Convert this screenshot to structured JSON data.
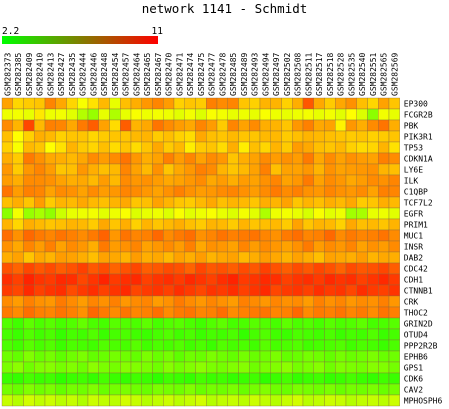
{
  "title": "network 1141 - Schmidt",
  "chart_data": {
    "type": "heatmap",
    "title": "network 1141 - Schmidt",
    "color_scale": {
      "min": 2.2,
      "max": 11,
      "min_label": "2.2",
      "max_label": "11",
      "low_color": "#00ff00",
      "high_color": "#ff0000"
    },
    "columns": [
      "GSM282373",
      "GSM282385",
      "GSM282409",
      "GSM282410",
      "GSM282413",
      "GSM282427",
      "GSM282435",
      "GSM282444",
      "GSM282446",
      "GSM282448",
      "GSM282454",
      "GSM282457",
      "GSM282464",
      "GSM282465",
      "GSM282467",
      "GSM282470",
      "GSM282471",
      "GSM282474",
      "GSM282475",
      "GSM282477",
      "GSM282478",
      "GSM282485",
      "GSM282489",
      "GSM282493",
      "GSM282494",
      "GSM282497",
      "GSM282502",
      "GSM282508",
      "GSM282511",
      "GSM282517",
      "GSM282518",
      "GSM282528",
      "GSM282535",
      "GSM282540",
      "GSM282551",
      "GSM282565",
      "GSM282569"
    ],
    "rows": [
      "EP300",
      "FCGR2B",
      "PBK",
      "PIK3R1",
      "TP53",
      "CDKN1A",
      "LY6E",
      "ILK",
      "C1QBP",
      "TCF7L2",
      "EGFR",
      "PRIM1",
      "MUC1",
      "INSR",
      "DAB2",
      "CDC42",
      "CDH1",
      "CTNNB1",
      "CRK",
      "THOC2",
      "GRIN2D",
      "OTUD4",
      "PPP2R2B",
      "EPHB6",
      "GPS1",
      "CDK6",
      "CAV2",
      "MPHOSPH6"
    ],
    "row_values": [
      [
        8.2,
        7.3,
        7.5,
        7.6,
        8.7,
        8.1,
        7.3,
        6.5,
        7.1,
        7.8,
        6.2,
        7.7,
        8.0,
        8.4,
        8.7,
        8.3,
        7.4,
        7.6,
        7.5,
        8.8,
        8.6,
        8.7,
        7.6,
        7.4,
        7.9,
        7.9,
        7.4,
        8.0,
        9.5,
        8.1,
        7.5,
        8.1,
        8.5,
        7.7,
        7.3,
        8.2,
        7.6
      ],
      [
        6.3,
        6.4,
        6.2,
        7.0,
        6.3,
        6.4,
        6.1,
        5.3,
        4.8,
        6.2,
        5.2,
        6.2,
        6.5,
        6.3,
        6.4,
        6.3,
        6.1,
        6.4,
        6.0,
        6.5,
        6.4,
        6.2,
        6.3,
        6.2,
        6.5,
        6.3,
        6.2,
        6.3,
        6.4,
        6.2,
        6.4,
        6.1,
        6.6,
        6.0,
        4.6,
        6.4,
        6.2
      ],
      [
        8.6,
        7.9,
        9.8,
        7.8,
        8.8,
        8.7,
        8.1,
        8.9,
        9.4,
        8.2,
        7.2,
        9.4,
        7.9,
        8.1,
        9.0,
        8.6,
        8.3,
        8.1,
        8.7,
        8.3,
        7.5,
        8.7,
        8.2,
        8.6,
        8.0,
        7.9,
        7.6,
        8.4,
        8.8,
        8.1,
        8.2,
        6.8,
        8.4,
        8.0,
        8.6,
        9.0,
        8.0
      ],
      [
        7.7,
        6.6,
        7.4,
        8.0,
        7.8,
        7.4,
        7.6,
        7.6,
        7.3,
        7.5,
        7.6,
        7.6,
        7.8,
        7.9,
        7.5,
        7.7,
        7.4,
        7.2,
        8.1,
        7.7,
        7.6,
        7.8,
        7.6,
        7.6,
        7.8,
        7.8,
        7.5,
        7.7,
        7.9,
        7.8,
        7.7,
        7.6,
        7.5,
        7.6,
        7.4,
        7.5,
        7.6
      ],
      [
        7.4,
        6.5,
        7.8,
        7.6,
        6.6,
        7.1,
        7.9,
        7.5,
        7.3,
        7.7,
        7.2,
        7.6,
        7.2,
        7.6,
        8.1,
        7.5,
        7.8,
        6.9,
        7.5,
        7.6,
        7.2,
        8.0,
        6.9,
        7.7,
        7.3,
        7.9,
        7.5,
        8.3,
        8.1,
        7.7,
        7.6,
        7.8,
        7.4,
        7.2,
        7.3,
        7.9,
        7.1
      ],
      [
        8.0,
        7.5,
        8.9,
        8.5,
        8.1,
        8.0,
        7.8,
        8.1,
        8.6,
        8.3,
        8.6,
        9.0,
        8.4,
        8.0,
        8.2,
        8.8,
        8.3,
        8.7,
        8.2,
        8.6,
        8.4,
        7.6,
        8.0,
        8.2,
        8.6,
        8.3,
        8.5,
        8.3,
        8.9,
        8.1,
        8.6,
        8.2,
        8.5,
        8.3,
        8.2,
        8.8,
        8.6
      ],
      [
        8.4,
        7.5,
        8.4,
        8.7,
        8.3,
        7.6,
        7.7,
        8.4,
        8.0,
        7.7,
        7.8,
        8.7,
        8.2,
        7.8,
        8.5,
        7.6,
        8.1,
        8.4,
        8.8,
        8.6,
        7.9,
        7.6,
        7.8,
        8.2,
        8.8,
        7.7,
        8.2,
        8.2,
        8.4,
        7.9,
        8.5,
        8.2,
        8.3,
        8.4,
        8.5,
        7.9,
        7.7
      ],
      [
        8.3,
        8.0,
        8.6,
        8.6,
        8.5,
        8.2,
        8.0,
        8.1,
        7.8,
        8.3,
        7.8,
        8.6,
        8.4,
        8.5,
        8.3,
        8.1,
        8.2,
        8.4,
        8.6,
        8.1,
        8.3,
        8.0,
        8.3,
        8.2,
        8.5,
        8.7,
        8.2,
        8.4,
        8.9,
        8.2,
        8.6,
        8.4,
        8.1,
        8.3,
        8.6,
        8.5,
        8.7
      ],
      [
        9.0,
        8.3,
        8.8,
        8.7,
        8.2,
        8.6,
        8.5,
        8.2,
        8.6,
        8.3,
        8.4,
        8.7,
        8.6,
        8.4,
        8.2,
        8.5,
        8.8,
        8.5,
        8.3,
        8.4,
        8.6,
        8.7,
        8.5,
        8.3,
        8.6,
        8.9,
        8.6,
        8.8,
        8.5,
        8.4,
        8.7,
        8.5,
        8.4,
        8.6,
        8.2,
        8.8,
        8.7
      ],
      [
        7.7,
        8.0,
        7.6,
        8.3,
        7.5,
        7.9,
        7.8,
        8.1,
        7.8,
        7.7,
        7.9,
        8.1,
        7.6,
        7.7,
        8.2,
        7.9,
        7.6,
        7.5,
        7.8,
        8.1,
        7.7,
        7.9,
        7.8,
        7.6,
        8.0,
        7.9,
        8.2,
        7.6,
        7.9,
        7.7,
        8.0,
        7.8,
        8.1,
        7.5,
        7.6,
        8.0,
        7.8
      ],
      [
        4.6,
        6.4,
        4.8,
        5.1,
        4.7,
        5.7,
        6.2,
        6.3,
        6.4,
        6.1,
        6.3,
        6.5,
        6.0,
        6.2,
        6.3,
        6.0,
        6.5,
        6.1,
        6.3,
        6.5,
        6.2,
        6.0,
        6.4,
        6.1,
        5.2,
        6.3,
        6.4,
        6.2,
        5.9,
        6.5,
        6.1,
        6.3,
        5.0,
        5.1,
        6.2,
        6.3,
        6.1
      ],
      [
        7.9,
        7.3,
        8.0,
        7.8,
        7.6,
        7.7,
        7.9,
        7.8,
        7.5,
        8.1,
        7.6,
        8.0,
        7.4,
        7.9,
        7.6,
        7.8,
        8.0,
        7.7,
        7.5,
        7.9,
        7.8,
        7.5,
        7.9,
        7.6,
        7.7,
        7.8,
        7.5,
        8.2,
        7.6,
        7.9,
        7.8,
        7.4,
        8.1,
        7.7,
        7.8,
        7.6,
        7.9
      ],
      [
        9.1,
        8.5,
        9.2,
        8.9,
        8.7,
        9.0,
        8.8,
        8.6,
        8.9,
        9.3,
        8.4,
        9.0,
        8.7,
        8.8,
        9.2,
        8.6,
        8.9,
        9.1,
        8.5,
        8.7,
        9.0,
        8.8,
        8.9,
        9.0,
        8.7,
        8.5,
        8.9,
        9.1,
        8.7,
        8.8,
        9.2,
        8.6,
        8.9,
        8.7,
        8.8,
        9.0,
        8.6
      ],
      [
        8.5,
        8.1,
        8.7,
        8.3,
        8.8,
        8.2,
        8.6,
        8.4,
        8.0,
        8.9,
        8.3,
        8.5,
        8.7,
        8.2,
        8.4,
        8.6,
        8.3,
        8.8,
        8.1,
        8.5,
        8.4,
        8.2,
        8.7,
        8.3,
        8.6,
        8.4,
        8.2,
        8.5,
        8.9,
        8.3,
        8.6,
        8.4,
        8.7,
        8.2,
        8.5,
        8.3,
        8.6
      ],
      [
        8.0,
        8.2,
        7.6,
        8.1,
        7.9,
        8.3,
        8.2,
        8.0,
        7.7,
        8.2,
        8.1,
        7.9,
        8.3,
        8.0,
        8.1,
        7.8,
        8.2,
        8.0,
        8.3,
        7.9,
        8.1,
        8.2,
        7.8,
        8.0,
        8.3,
        8.1,
        7.9,
        8.2,
        8.0,
        7.7,
        8.2,
        8.1,
        8.0,
        8.3,
        7.9,
        8.1,
        8.0
      ],
      [
        9.6,
        9.3,
        9.8,
        9.5,
        9.7,
        9.4,
        9.6,
        9.9,
        9.5,
        9.7,
        9.3,
        9.6,
        9.8,
        9.4,
        9.5,
        9.7,
        9.6,
        9.3,
        9.8,
        9.5,
        9.6,
        9.4,
        9.7,
        9.5,
        9.9,
        9.6,
        9.4,
        9.7,
        9.5,
        9.8,
        9.6,
        9.3,
        9.7,
        9.5,
        9.6,
        9.8,
        9.4
      ],
      [
        10.2,
        9.9,
        10.4,
        10.1,
        10.0,
        10.3,
        10.2,
        9.8,
        10.1,
        10.4,
        10.0,
        10.2,
        10.3,
        9.9,
        10.1,
        10.2,
        10.0,
        10.3,
        10.1,
        9.9,
        10.2,
        10.4,
        10.0,
        10.1,
        10.3,
        10.2,
        9.9,
        10.1,
        10.2,
        10.0,
        10.3,
        10.1,
        10.2,
        9.9,
        10.1,
        10.3,
        10.0
      ],
      [
        10.0,
        9.8,
        10.3,
        9.9,
        10.1,
        10.2,
        9.7,
        10.0,
        10.2,
        9.9,
        10.1,
        10.3,
        9.8,
        10.0,
        10.1,
        9.9,
        10.2,
        10.0,
        9.8,
        10.1,
        10.0,
        10.2,
        9.9,
        10.1,
        10.3,
        9.8,
        10.0,
        10.1,
        9.9,
        10.2,
        10.0,
        10.1,
        9.8,
        10.2,
        10.0,
        9.9,
        10.1
      ],
      [
        8.6,
        8.3,
        8.8,
        8.5,
        8.4,
        8.9,
        8.6,
        8.3,
        8.7,
        8.5,
        8.8,
        8.4,
        8.6,
        8.7,
        8.3,
        8.5,
        8.9,
        8.6,
        8.4,
        8.7,
        8.5,
        8.3,
        8.8,
        8.6,
        8.4,
        8.7,
        8.5,
        8.6,
        8.3,
        8.8,
        8.5,
        8.7,
        8.4,
        8.6,
        8.5,
        8.8,
        8.4
      ],
      [
        8.9,
        8.6,
        9.1,
        8.8,
        8.7,
        9.0,
        8.8,
        8.5,
        9.2,
        8.9,
        8.6,
        9.0,
        8.7,
        8.8,
        9.1,
        8.6,
        8.9,
        9.0,
        8.7,
        8.8,
        9.1,
        8.6,
        8.8,
        8.9,
        9.0,
        8.7,
        8.8,
        9.2,
        8.6,
        8.9,
        8.8,
        9.0,
        8.7,
        8.9,
        8.6,
        9.0,
        8.8
      ],
      [
        3.6,
        3.3,
        3.8,
        3.5,
        3.7,
        3.4,
        3.6,
        3.9,
        3.5,
        3.4,
        3.7,
        3.6,
        3.5,
        3.8,
        3.4,
        3.6,
        3.7,
        3.5,
        3.3,
        3.6,
        3.8,
        3.4,
        3.5,
        3.7,
        3.6,
        3.4,
        3.8,
        3.5,
        3.6,
        3.4,
        3.7,
        3.5,
        3.6,
        3.8,
        3.4,
        3.5,
        3.7
      ],
      [
        3.4,
        3.2,
        3.6,
        3.3,
        3.5,
        3.1,
        3.4,
        3.3,
        3.6,
        3.2,
        3.4,
        3.5,
        3.3,
        3.2,
        3.4,
        3.6,
        3.3,
        3.5,
        3.2,
        3.4,
        3.3,
        3.5,
        3.1,
        3.4,
        3.6,
        3.3,
        3.2,
        3.5,
        3.4,
        3.3,
        3.5,
        3.2,
        3.4,
        3.3,
        3.6,
        3.2,
        3.4
      ],
      [
        3.5,
        3.3,
        3.7,
        3.4,
        3.6,
        3.2,
        3.5,
        3.4,
        3.3,
        3.6,
        3.5,
        3.4,
        3.7,
        3.3,
        3.5,
        3.4,
        3.6,
        3.3,
        3.5,
        3.2,
        3.6,
        3.4,
        3.5,
        3.3,
        3.7,
        3.4,
        3.5,
        3.6,
        3.3,
        3.4,
        3.5,
        3.6,
        3.3,
        3.5,
        3.4,
        3.2,
        3.5
      ],
      [
        4.1,
        3.9,
        4.4,
        4.0,
        4.2,
        3.8,
        4.1,
        4.3,
        3.9,
        4.0,
        4.2,
        4.1,
        3.9,
        4.3,
        4.0,
        4.2,
        3.8,
        4.1,
        4.0,
        4.3,
        4.1,
        3.9,
        4.2,
        4.0,
        4.1,
        4.3,
        3.9,
        4.0,
        4.2,
        4.1,
        3.9,
        4.2,
        4.0,
        4.1,
        4.3,
        4.0,
        4.1
      ],
      [
        4.3,
        4.6,
        4.1,
        4.4,
        4.5,
        4.2,
        4.4,
        4.1,
        4.6,
        4.3,
        4.2,
        4.5,
        4.4,
        4.3,
        4.1,
        4.5,
        4.2,
        4.4,
        4.6,
        4.3,
        4.2,
        4.4,
        4.5,
        4.1,
        4.3,
        4.4,
        4.6,
        4.2,
        4.3,
        4.5,
        4.1,
        4.4,
        4.3,
        4.2,
        4.5,
        4.4,
        4.2
      ],
      [
        3.2,
        3.1,
        3.4,
        3.2,
        3.3,
        3.0,
        3.2,
        3.3,
        3.1,
        3.4,
        3.2,
        3.1,
        3.3,
        3.2,
        3.0,
        3.3,
        3.2,
        3.1,
        3.4,
        3.2,
        3.3,
        3.1,
        3.2,
        3.3,
        3.0,
        3.2,
        3.4,
        3.1,
        3.2,
        3.3,
        3.1,
        3.2,
        3.4,
        3.2,
        3.1,
        3.3,
        3.2
      ],
      [
        4.2,
        4.0,
        4.4,
        4.1,
        4.3,
        3.9,
        4.2,
        4.1,
        4.4,
        4.0,
        4.2,
        4.3,
        4.1,
        4.0,
        4.3,
        4.2,
        4.1,
        4.4,
        4.0,
        4.2,
        4.1,
        4.3,
        4.0,
        4.2,
        4.4,
        4.1,
        4.0,
        4.3,
        4.2,
        4.1,
        4.3,
        4.0,
        4.2,
        4.1,
        4.3,
        4.0,
        4.2
      ],
      [
        5.6,
        5.3,
        5.8,
        5.5,
        5.7,
        5.4,
        5.6,
        5.2,
        5.7,
        5.5,
        5.4,
        5.8,
        5.6,
        5.3,
        5.5,
        5.7,
        5.4,
        5.6,
        5.8,
        5.3,
        5.5,
        5.6,
        5.4,
        5.7,
        5.5,
        5.3,
        5.6,
        5.8,
        5.4,
        5.5,
        5.7,
        5.6,
        5.3,
        5.5,
        5.6,
        5.4,
        5.7
      ]
    ]
  }
}
